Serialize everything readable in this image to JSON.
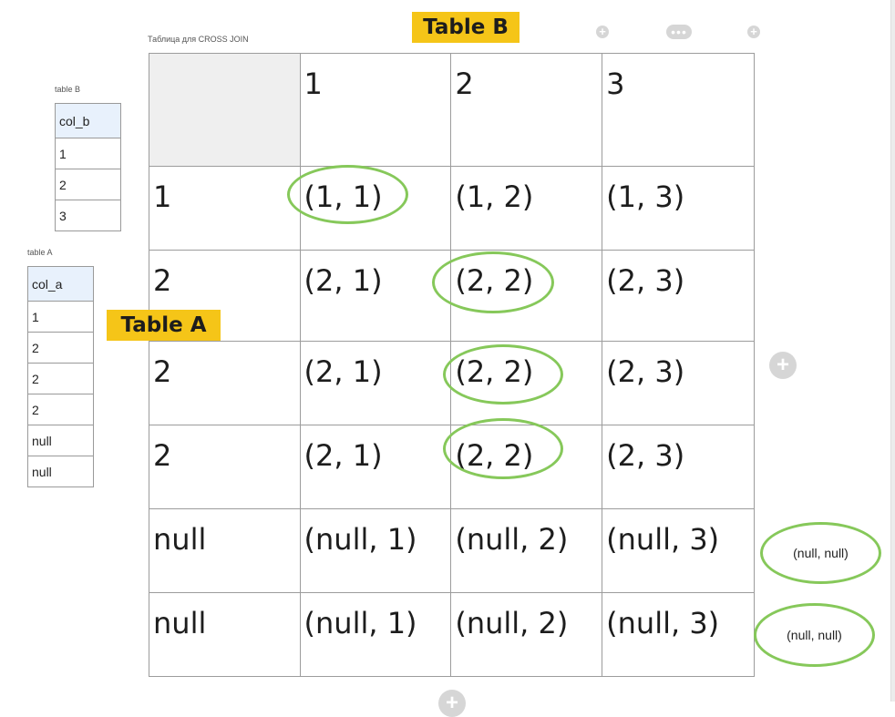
{
  "caption_main": "Таблица для CROSS JOIN",
  "label_table_b": "Table B",
  "label_table_a": "Table A",
  "table_b": {
    "caption": "table B",
    "header": "col_b",
    "rows": [
      "1",
      "2",
      "3"
    ]
  },
  "table_a": {
    "caption": "table A",
    "header": "col_a",
    "rows": [
      "1",
      "2",
      "2",
      "2",
      "null",
      "null"
    ]
  },
  "grid": {
    "col_headers": [
      "1",
      "2",
      "3"
    ],
    "rows": [
      {
        "key": "1",
        "cells": [
          "(1, 1)",
          "(1, 2)",
          "(1, 3)"
        ]
      },
      {
        "key": "2",
        "cells": [
          "(2, 1)",
          "(2, 2)",
          "(2, 3)"
        ]
      },
      {
        "key": "2",
        "cells": [
          "(2, 1)",
          "(2, 2)",
          "(2, 3)"
        ]
      },
      {
        "key": "2",
        "cells": [
          "(2, 1)",
          "(2, 2)",
          "(2, 3)"
        ]
      },
      {
        "key": "null",
        "cells": [
          "(null, 1)",
          "(null, 2)",
          "(null, 3)"
        ]
      },
      {
        "key": "null",
        "cells": [
          "(null, 1)",
          "(null, 2)",
          "(null, 3)"
        ]
      }
    ]
  },
  "outside_labels": [
    "(null, null)",
    "(null, null)"
  ],
  "buttons": {
    "plus_glyph": "+",
    "more_glyph": "•••"
  },
  "colors": {
    "highlight": "#86c85a",
    "sticker": "#f5c518",
    "header_fill": "#e8f1fc"
  }
}
